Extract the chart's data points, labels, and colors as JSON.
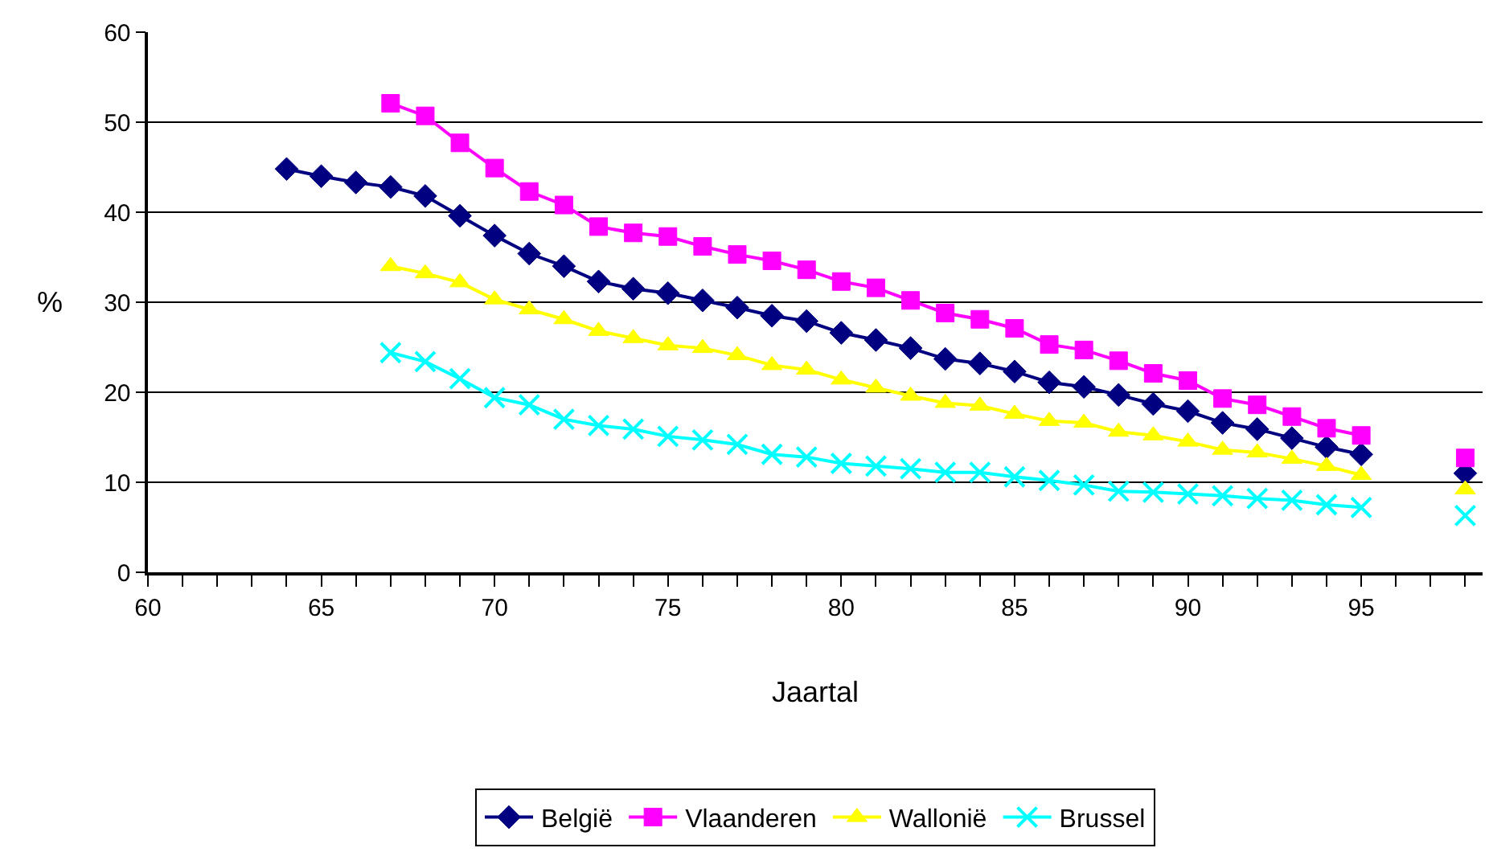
{
  "chart_data": {
    "type": "line",
    "xlabel": "Jaartal",
    "ylabel": "%",
    "xlim": [
      60,
      98.5
    ],
    "ylim": [
      0,
      60
    ],
    "xticks": [
      60,
      {
        "value": 61,
        "label": null
      },
      {
        "value": 62,
        "label": null
      },
      {
        "value": 63,
        "label": null
      },
      {
        "value": 64,
        "label": null
      },
      65,
      {
        "value": 66,
        "label": null
      },
      {
        "value": 67,
        "label": null
      },
      {
        "value": 68,
        "label": null
      },
      {
        "value": 69,
        "label": null
      },
      70,
      {
        "value": 71,
        "label": null
      },
      {
        "value": 72,
        "label": null
      },
      {
        "value": 73,
        "label": null
      },
      {
        "value": 74,
        "label": null
      },
      75,
      {
        "value": 76,
        "label": null
      },
      {
        "value": 77,
        "label": null
      },
      {
        "value": 78,
        "label": null
      },
      {
        "value": 79,
        "label": null
      },
      80,
      {
        "value": 81,
        "label": null
      },
      {
        "value": 82,
        "label": null
      },
      {
        "value": 83,
        "label": null
      },
      {
        "value": 84,
        "label": null
      },
      85,
      {
        "value": 86,
        "label": null
      },
      {
        "value": 87,
        "label": null
      },
      {
        "value": 88,
        "label": null
      },
      {
        "value": 89,
        "label": null
      },
      90,
      {
        "value": 91,
        "label": null
      },
      {
        "value": 92,
        "label": null
      },
      {
        "value": 93,
        "label": null
      },
      {
        "value": 94,
        "label": null
      },
      95,
      {
        "value": 96,
        "label": null
      },
      {
        "value": 97,
        "label": null
      },
      {
        "value": 98,
        "label": null
      }
    ],
    "yticks": [
      0,
      10,
      20,
      30,
      40,
      50,
      60
    ],
    "grid": "y",
    "legend": "bottom",
    "line_style": "solid",
    "series": [
      {
        "name": "België",
        "color": "#000080",
        "marker": "diamond",
        "x": [
          64,
          65,
          66,
          67,
          68,
          69,
          70,
          71,
          72,
          73,
          74,
          75,
          76,
          77,
          78,
          79,
          80,
          81,
          82,
          83,
          84,
          85,
          86,
          87,
          88,
          89,
          90,
          91,
          92,
          93,
          94,
          95,
          96,
          97,
          98
        ],
        "values": [
          44.8,
          44,
          43.3,
          42.8,
          41.8,
          39.6,
          37.4,
          35.4,
          34,
          32.3,
          31.5,
          31,
          30.2,
          29.4,
          28.5,
          27.9,
          26.6,
          25.8,
          24.9,
          23.7,
          23.2,
          22.3,
          21.1,
          20.6,
          19.7,
          18.7,
          17.9,
          16.6,
          15.9,
          14.9,
          13.9,
          13.1,
          null,
          null,
          11
        ]
      },
      {
        "name": "Vlaanderen",
        "color": "#ff00ff",
        "marker": "square",
        "x": [
          67,
          68,
          69,
          70,
          71,
          72,
          73,
          74,
          75,
          76,
          77,
          78,
          79,
          80,
          81,
          82,
          83,
          84,
          85,
          86,
          87,
          88,
          89,
          90,
          91,
          92,
          93,
          94,
          95,
          96,
          97,
          98
        ],
        "values": [
          52.1,
          50.7,
          47.7,
          44.9,
          42.3,
          40.8,
          38.4,
          37.7,
          37.3,
          36.2,
          35.3,
          34.6,
          33.6,
          32.3,
          31.6,
          30.2,
          28.8,
          28.1,
          27.1,
          25.3,
          24.7,
          23.5,
          22.1,
          21.3,
          19.3,
          18.6,
          17.3,
          16,
          15.2,
          null,
          null,
          12.7
        ]
      },
      {
        "name": "Wallonië",
        "color": "#ffff00",
        "marker": "triangle",
        "x": [
          67,
          68,
          69,
          70,
          71,
          72,
          73,
          74,
          75,
          76,
          77,
          78,
          79,
          80,
          81,
          82,
          83,
          84,
          85,
          86,
          87,
          88,
          89,
          90,
          91,
          92,
          93,
          94,
          95,
          96,
          97,
          98
        ],
        "values": [
          34,
          33.2,
          32.2,
          30.3,
          29.2,
          28.1,
          26.8,
          26,
          25.2,
          24.9,
          24.1,
          23,
          22.5,
          21.4,
          20.5,
          19.6,
          18.8,
          18.5,
          17.6,
          16.8,
          16.6,
          15.6,
          15.2,
          14.5,
          13.6,
          13.3,
          12.6,
          11.8,
          10.8,
          null,
          null,
          9.2
        ]
      },
      {
        "name": "Brussel",
        "color": "#00ffff",
        "marker": "cross",
        "x": [
          67,
          68,
          69,
          70,
          71,
          72,
          73,
          74,
          75,
          76,
          77,
          78,
          79,
          80,
          81,
          82,
          83,
          84,
          85,
          86,
          87,
          88,
          89,
          90,
          91,
          92,
          93,
          94,
          95,
          96,
          97,
          98
        ],
        "values": [
          24.4,
          23.4,
          21.5,
          19.4,
          18.6,
          17,
          16.3,
          15.9,
          15.1,
          14.7,
          14.2,
          13.1,
          12.8,
          12.1,
          11.8,
          11.5,
          11.1,
          11.1,
          10.6,
          10.2,
          9.7,
          9,
          8.9,
          8.7,
          8.5,
          8.2,
          8,
          7.5,
          7.2,
          null,
          null,
          6.3
        ]
      }
    ]
  }
}
